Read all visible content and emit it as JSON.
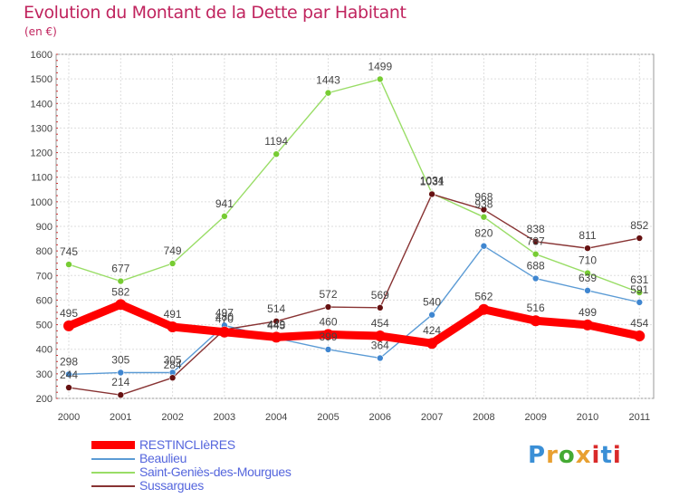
{
  "header": {
    "title": "Evolution du Montant de la Dette par Habitant",
    "subtitle": "(en €)"
  },
  "logo": {
    "text": "Proxiti",
    "colors": [
      "#3a8fd6",
      "#e8a030",
      "#44aa33",
      "#e8a030",
      "#d92a2a",
      "#3a8fd6",
      "#d92a2a"
    ]
  },
  "chart_data": {
    "type": "line",
    "title": "Evolution du Montant de la Dette par Habitant",
    "subtitle": "(en €)",
    "xlabel": "",
    "ylabel": "",
    "categories": [
      "2000",
      "2001",
      "2002",
      "2003",
      "2004",
      "2005",
      "2006",
      "2007",
      "2008",
      "2009",
      "2010",
      "2011"
    ],
    "ylim": [
      200,
      1600
    ],
    "yticks": [
      200,
      300,
      400,
      500,
      600,
      700,
      800,
      900,
      1000,
      1100,
      1200,
      1300,
      1400,
      1500,
      1600
    ],
    "grid": true,
    "legend_position": "bottom-left",
    "series": [
      {
        "name": "RESTINCLIèRES",
        "color": "#ff0000",
        "markerColor": "#ff0000",
        "bold": true,
        "values": [
          495,
          582,
          491,
          470,
          449,
          460,
          454,
          424,
          562,
          516,
          499,
          454
        ],
        "labels": [
          "495",
          "582",
          "491",
          "470",
          "449",
          "460",
          "454",
          "424",
          "562",
          "516",
          "499",
          "454"
        ]
      },
      {
        "name": "Beaulieu",
        "color": "#5b9bd5",
        "markerColor": "#3f86d0",
        "values": [
          298,
          305,
          305,
          497,
          445,
          399,
          364,
          540,
          820,
          688,
          639,
          591
        ],
        "labels": [
          "298",
          "305",
          "305",
          "497",
          "445",
          "399",
          "364",
          "540",
          "820",
          "688",
          "639",
          "591"
        ]
      },
      {
        "name": "Saint-Geniès-des-Mourgues",
        "color": "#99dd66",
        "markerColor": "#77cc33",
        "values": [
          745,
          677,
          749,
          941,
          1194,
          1443,
          1499,
          1034,
          938,
          787,
          710,
          631
        ],
        "labels": [
          "745",
          "677",
          "749",
          "941",
          "1194",
          "1443",
          "1499",
          "1034",
          "938",
          "787",
          "710",
          "631"
        ]
      },
      {
        "name": "Sussargues",
        "color": "#883333",
        "markerColor": "#661111",
        "values": [
          244,
          214,
          284,
          480,
          514,
          572,
          569,
          1031,
          968,
          838,
          811,
          852
        ],
        "labels": [
          "244",
          "214",
          "284",
          "480",
          "514",
          "572",
          "569",
          "1031",
          "968",
          "838",
          "811",
          "852"
        ]
      }
    ]
  }
}
